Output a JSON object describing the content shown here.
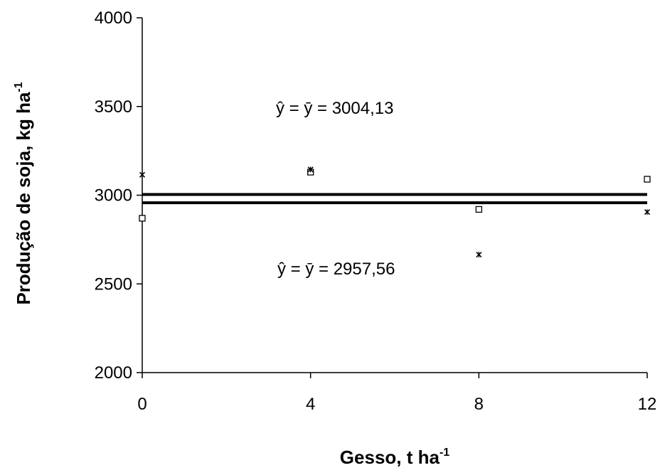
{
  "chart_data": {
    "type": "scatter",
    "xlabel": "Gesso, t ha",
    "xlabel_sup": "-1",
    "ylabel": "Produção de soja, kg ha",
    "ylabel_sup": "-1",
    "xlim": [
      0,
      12
    ],
    "ylim": [
      2000,
      4000
    ],
    "xticks": [
      0,
      4,
      8,
      12
    ],
    "yticks": [
      2000,
      2500,
      3000,
      3500,
      4000
    ],
    "grid": false,
    "series": [
      {
        "marker": "open-square",
        "x": [
          0,
          4,
          8,
          12
        ],
        "y": [
          2870,
          3130,
          2920,
          3090
        ]
      },
      {
        "marker": "asterisk",
        "x": [
          0,
          4,
          8,
          12
        ],
        "y": [
          3115,
          3145,
          2665,
          2905
        ]
      }
    ],
    "fit_lines": [
      {
        "y": 3004.13,
        "label": "ŷ = ȳ = 3004,13"
      },
      {
        "y": 2957.56,
        "label": "ŷ = ȳ = 2957,56"
      }
    ]
  }
}
